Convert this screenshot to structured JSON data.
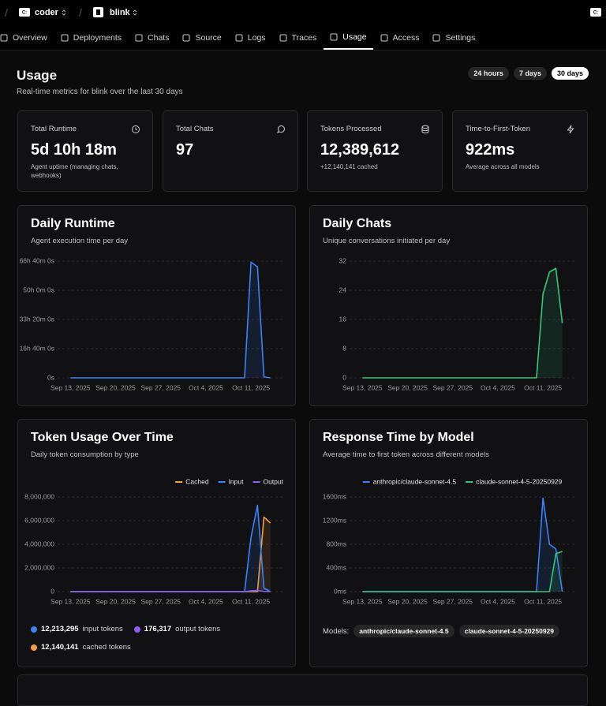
{
  "header": {
    "org": "coder",
    "project": "blink"
  },
  "nav": {
    "items": [
      "Overview",
      "Deployments",
      "Chats",
      "Source",
      "Logs",
      "Traces",
      "Usage",
      "Access",
      "Settings"
    ],
    "active": "Usage"
  },
  "page": {
    "title": "Usage",
    "subtitle": "Real-time metrics for blink over the last 30 days",
    "ranges": [
      "24 hours",
      "7 days",
      "30 days"
    ],
    "active_range": "30 days"
  },
  "stats": [
    {
      "label": "Total Runtime",
      "value": "5d 10h 18m",
      "note": "Agent uptime (managing chats, webhooks)"
    },
    {
      "label": "Total Chats",
      "value": "97",
      "note": null
    },
    {
      "label": "Tokens Processed",
      "value": "12,389,612",
      "note": "+12,140,141 cached"
    },
    {
      "label": "Time-to-First-Token",
      "value": "922ms",
      "note": "Average across all models"
    }
  ],
  "chart_data": [
    {
      "type": "line",
      "title": "Daily Runtime",
      "subtitle": "Agent execution time per day",
      "x": [
        "2025-09-13",
        "2025-09-14",
        "2025-09-15",
        "2025-09-16",
        "2025-09-17",
        "2025-09-18",
        "2025-09-19",
        "2025-09-20",
        "2025-09-21",
        "2025-09-22",
        "2025-09-23",
        "2025-09-24",
        "2025-09-25",
        "2025-09-26",
        "2025-09-27",
        "2025-09-28",
        "2025-09-29",
        "2025-09-30",
        "2025-10-01",
        "2025-10-02",
        "2025-10-03",
        "2025-10-04",
        "2025-10-05",
        "2025-10-06",
        "2025-10-07",
        "2025-10-08",
        "2025-10-09",
        "2025-10-10",
        "2025-10-11",
        "2025-10-12",
        "2025-10-13",
        "2025-10-14"
      ],
      "series": [
        {
          "name": null,
          "color": "#3b82f6",
          "values": [
            0,
            0,
            0,
            0,
            0,
            0,
            0,
            0,
            0,
            0,
            0,
            0,
            0,
            0,
            0,
            0,
            0,
            0,
            0,
            0,
            0,
            0,
            0,
            0,
            0,
            0,
            0,
            0,
            238000,
            228000,
            2000,
            0
          ]
        }
      ],
      "xlim": [
        "2025-09-11",
        "2025-10-16"
      ],
      "xticks": [
        {
          "value": "2025-09-13",
          "label": "Sep 13, 2025"
        },
        {
          "value": "2025-09-20",
          "label": "Sep 20, 2025"
        },
        {
          "value": "2025-09-27",
          "label": "Sep 27, 2025"
        },
        {
          "value": "2025-10-04",
          "label": "Oct 4, 2025"
        },
        {
          "value": "2025-10-11",
          "label": "Oct 11, 2025"
        }
      ],
      "ylim": [
        0,
        240000
      ],
      "yticks": [
        {
          "value": 0,
          "label": "0s"
        },
        {
          "value": 60000,
          "label": "16h 40m 0s"
        },
        {
          "value": 120000,
          "label": "33h 20m 0s"
        },
        {
          "value": 180000,
          "label": "50h 0m 0s"
        },
        {
          "value": 240000,
          "label": "66h 40m 0s"
        }
      ],
      "grid": true
    },
    {
      "type": "line",
      "title": "Daily Chats",
      "subtitle": "Unique conversations initiated per day",
      "x": [
        "2025-09-13",
        "2025-09-14",
        "2025-09-15",
        "2025-09-16",
        "2025-09-17",
        "2025-09-18",
        "2025-09-19",
        "2025-09-20",
        "2025-09-21",
        "2025-09-22",
        "2025-09-23",
        "2025-09-24",
        "2025-09-25",
        "2025-09-26",
        "2025-09-27",
        "2025-09-28",
        "2025-09-29",
        "2025-09-30",
        "2025-10-01",
        "2025-10-02",
        "2025-10-03",
        "2025-10-04",
        "2025-10-05",
        "2025-10-06",
        "2025-10-07",
        "2025-10-08",
        "2025-10-09",
        "2025-10-10",
        "2025-10-11",
        "2025-10-12",
        "2025-10-13",
        "2025-10-14"
      ],
      "series": [
        {
          "name": null,
          "color": "#34c77b",
          "values": [
            0,
            0,
            0,
            0,
            0,
            0,
            0,
            0,
            0,
            0,
            0,
            0,
            0,
            0,
            0,
            0,
            0,
            0,
            0,
            0,
            0,
            0,
            0,
            0,
            0,
            0,
            0,
            0,
            23,
            29,
            30,
            15
          ]
        }
      ],
      "xlim": [
        "2025-09-11",
        "2025-10-16"
      ],
      "xticks": [
        {
          "value": "2025-09-13",
          "label": "Sep 13, 2025"
        },
        {
          "value": "2025-09-20",
          "label": "Sep 20, 2025"
        },
        {
          "value": "2025-09-27",
          "label": "Sep 27, 2025"
        },
        {
          "value": "2025-10-04",
          "label": "Oct 4, 2025"
        },
        {
          "value": "2025-10-11",
          "label": "Oct 11, 2025"
        }
      ],
      "ylim": [
        0,
        32
      ],
      "yticks": [
        0,
        8,
        16,
        24,
        32
      ],
      "grid": true
    },
    {
      "type": "line",
      "title": "Token Usage Over Time",
      "subtitle": "Daily token consumption by type",
      "legend": "top-right",
      "x": [
        "2025-09-13",
        "2025-09-14",
        "2025-09-15",
        "2025-09-16",
        "2025-09-17",
        "2025-09-18",
        "2025-09-19",
        "2025-09-20",
        "2025-09-21",
        "2025-09-22",
        "2025-09-23",
        "2025-09-24",
        "2025-09-25",
        "2025-09-26",
        "2025-09-27",
        "2025-09-28",
        "2025-09-29",
        "2025-09-30",
        "2025-10-01",
        "2025-10-02",
        "2025-10-03",
        "2025-10-04",
        "2025-10-05",
        "2025-10-06",
        "2025-10-07",
        "2025-10-08",
        "2025-10-09",
        "2025-10-10",
        "2025-10-11",
        "2025-10-12",
        "2025-10-13",
        "2025-10-14"
      ],
      "series": [
        {
          "name": "Cached",
          "color": "#f59e3b",
          "values": [
            0,
            0,
            0,
            0,
            0,
            0,
            0,
            0,
            0,
            0,
            0,
            0,
            0,
            0,
            0,
            0,
            0,
            0,
            0,
            0,
            0,
            0,
            0,
            0,
            0,
            0,
            0,
            0,
            0,
            0,
            6300000,
            5800000
          ]
        },
        {
          "name": "Input",
          "color": "#3b82f6",
          "values": [
            0,
            0,
            0,
            0,
            0,
            0,
            0,
            0,
            0,
            0,
            0,
            0,
            0,
            0,
            0,
            0,
            0,
            0,
            0,
            0,
            0,
            0,
            0,
            0,
            0,
            0,
            0,
            0,
            4600000,
            7300000,
            300000,
            0
          ]
        },
        {
          "name": "Output",
          "color": "#8b5cf6",
          "values": [
            0,
            0,
            0,
            0,
            0,
            0,
            0,
            0,
            0,
            0,
            0,
            0,
            0,
            0,
            0,
            0,
            0,
            0,
            0,
            0,
            0,
            0,
            0,
            0,
            0,
            0,
            0,
            0,
            60000,
            100000,
            16000,
            0
          ]
        }
      ],
      "xlim": [
        "2025-09-11",
        "2025-10-16"
      ],
      "xticks": [
        {
          "value": "2025-09-13",
          "label": "Sep 13, 2025"
        },
        {
          "value": "2025-09-20",
          "label": "Sep 20, 2025"
        },
        {
          "value": "2025-09-27",
          "label": "Sep 27, 2025"
        },
        {
          "value": "2025-10-04",
          "label": "Oct 4, 2025"
        },
        {
          "value": "2025-10-11",
          "label": "Oct 11, 2025"
        }
      ],
      "ylim": [
        0,
        8000000
      ],
      "yticks": [
        0,
        {
          "value": 2000000,
          "label": "2,000,000"
        },
        {
          "value": 4000000,
          "label": "4,000,000"
        },
        {
          "value": 6000000,
          "label": "6,000,000"
        },
        {
          "value": 8000000,
          "label": "8,000,000"
        }
      ],
      "grid": true,
      "summary": [
        {
          "value": "12,213,295",
          "label": "input tokens",
          "color": "#3b82f6"
        },
        {
          "value": "176,317",
          "label": "output tokens",
          "color": "#8b5cf6"
        },
        {
          "value": "12,140,141",
          "label": "cached tokens",
          "color": "#f59e3b"
        }
      ]
    },
    {
      "type": "line",
      "title": "Response Time by Model",
      "subtitle": "Average time to first token across different models",
      "legend": "top",
      "x": [
        "2025-09-13",
        "2025-09-14",
        "2025-09-15",
        "2025-09-16",
        "2025-09-17",
        "2025-09-18",
        "2025-09-19",
        "2025-09-20",
        "2025-09-21",
        "2025-09-22",
        "2025-09-23",
        "2025-09-24",
        "2025-09-25",
        "2025-09-26",
        "2025-09-27",
        "2025-09-28",
        "2025-09-29",
        "2025-09-30",
        "2025-10-01",
        "2025-10-02",
        "2025-10-03",
        "2025-10-04",
        "2025-10-05",
        "2025-10-06",
        "2025-10-07",
        "2025-10-08",
        "2025-10-09",
        "2025-10-10",
        "2025-10-11",
        "2025-10-12",
        "2025-10-13",
        "2025-10-14"
      ],
      "series": [
        {
          "name": "anthropic/claude-sonnet-4.5",
          "color": "#3b82f6",
          "values": [
            0,
            0,
            0,
            0,
            0,
            0,
            0,
            0,
            0,
            0,
            0,
            0,
            0,
            0,
            0,
            0,
            0,
            0,
            0,
            0,
            0,
            0,
            0,
            0,
            0,
            0,
            0,
            0,
            1580,
            800,
            720,
            0
          ]
        },
        {
          "name": "claude-sonnet-4-5-20250929",
          "color": "#34c77b",
          "values": [
            0,
            0,
            0,
            0,
            0,
            0,
            0,
            0,
            0,
            0,
            0,
            0,
            0,
            0,
            0,
            0,
            0,
            0,
            0,
            0,
            0,
            0,
            0,
            0,
            0,
            0,
            0,
            0,
            0,
            0,
            640,
            680
          ]
        }
      ],
      "xlim": [
        "2025-09-11",
        "2025-10-16"
      ],
      "xticks": [
        {
          "value": "2025-09-13",
          "label": "Sep 13, 2025"
        },
        {
          "value": "2025-09-20",
          "label": "Sep 20, 2025"
        },
        {
          "value": "2025-09-27",
          "label": "Sep 27, 2025"
        },
        {
          "value": "2025-10-04",
          "label": "Oct 4, 2025"
        },
        {
          "value": "2025-10-11",
          "label": "Oct 11, 2025"
        }
      ],
      "ylim": [
        0,
        1600
      ],
      "yticks": [
        {
          "value": 0,
          "label": "0ms"
        },
        {
          "value": 400,
          "label": "400ms"
        },
        {
          "value": 800,
          "label": "800ms"
        },
        {
          "value": 1200,
          "label": "1200ms"
        },
        {
          "value": 1600,
          "label": "1600ms"
        }
      ],
      "grid": true,
      "models_label": "Models:",
      "models": [
        "anthropic/claude-sonnet-4.5",
        "claude-sonnet-4-5-20250929"
      ]
    }
  ]
}
